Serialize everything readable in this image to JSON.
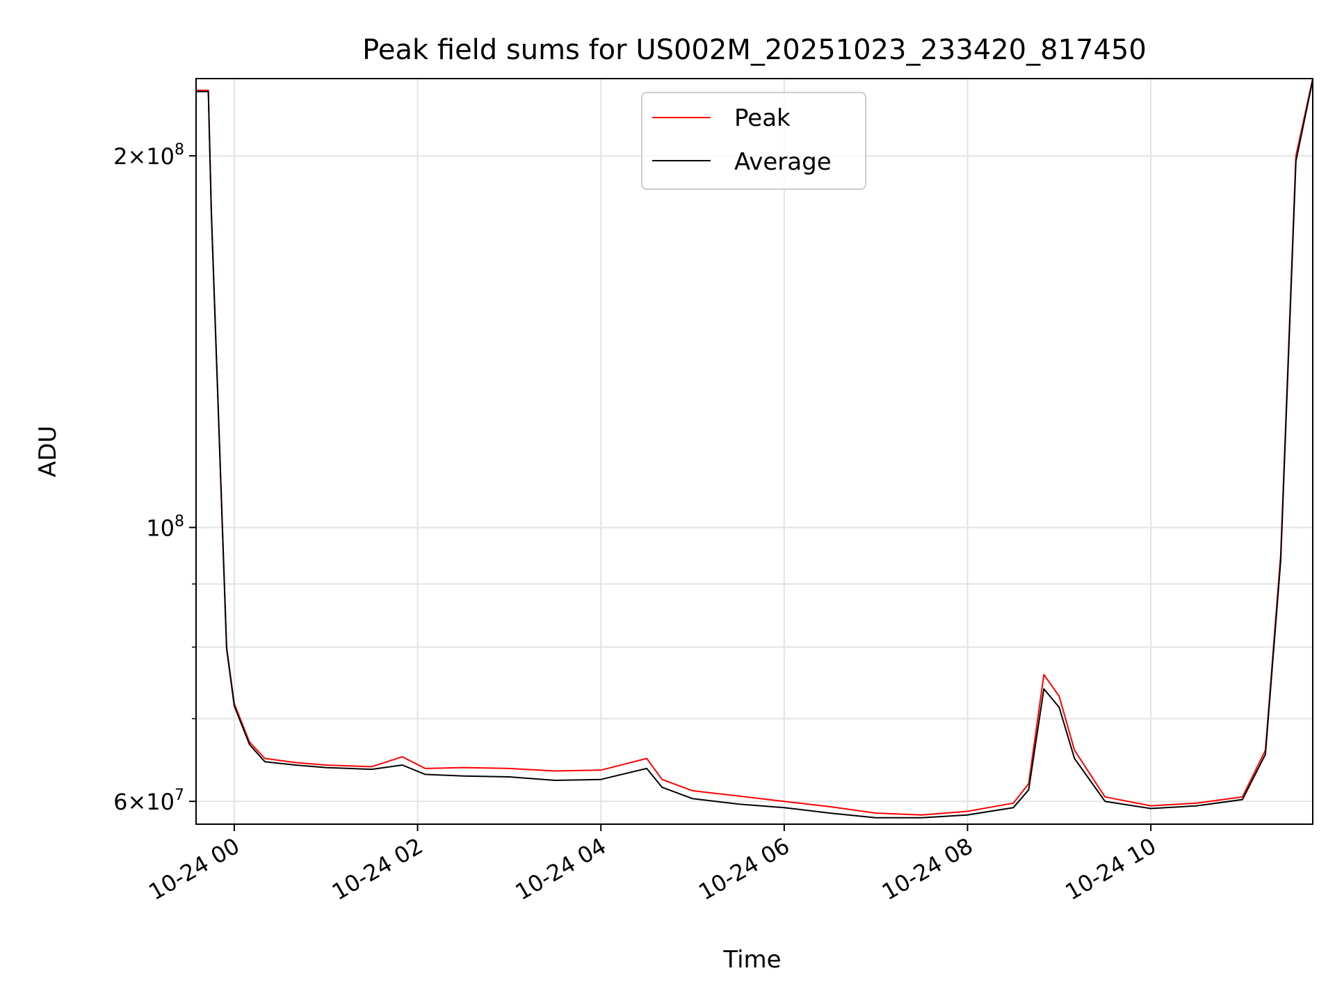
{
  "chart_data": {
    "type": "line",
    "title": "Peak field sums for US002M_20251023_233420_817450",
    "xlabel": "Time",
    "ylabel": "ADU",
    "yscale": "log",
    "ylim": [
      57500000,
      231000000
    ],
    "xlim": [
      "2025-10-23 23:35",
      "2025-10-24 11:46"
    ],
    "grid": true,
    "legend_position": "top-center",
    "x_tick_labels": [
      "10-24 00",
      "10-24 02",
      "10-24 04",
      "10-24 06",
      "10-24 08",
      "10-24 10"
    ],
    "x_ticks": [
      "2025-10-24 00:00",
      "2025-10-24 02:00",
      "2025-10-24 04:00",
      "2025-10-24 06:00",
      "2025-10-24 08:00",
      "2025-10-24 10:00"
    ],
    "y_major_ticks": [
      {
        "value": 60000000,
        "label_base": "6×10",
        "label_exp": "7"
      },
      {
        "value": 100000000,
        "label_base": "10",
        "label_exp": "8"
      },
      {
        "value": 200000000,
        "label_base": "2×10",
        "label_exp": "8"
      }
    ],
    "y_minor_ticks": [
      70000000,
      80000000,
      90000000
    ],
    "series": [
      {
        "name": "Peak",
        "color": "#ff0000",
        "points": [
          [
            "2025-10-23 23:35",
            226000000
          ],
          [
            "2025-10-23 23:43",
            226000000
          ],
          [
            "2025-10-23 23:45",
            180000000
          ],
          [
            "2025-10-23 23:50",
            120000000
          ],
          [
            "2025-10-23 23:55",
            80000000
          ],
          [
            "2025-10-24 00:00",
            72000000
          ],
          [
            "2025-10-24 00:10",
            67000000
          ],
          [
            "2025-10-24 00:20",
            65000000
          ],
          [
            "2025-10-24 00:40",
            64500000
          ],
          [
            "2025-10-24 01:00",
            64200000
          ],
          [
            "2025-10-24 01:30",
            64000000
          ],
          [
            "2025-10-24 01:50",
            65200000
          ],
          [
            "2025-10-24 02:05",
            63800000
          ],
          [
            "2025-10-24 02:30",
            63900000
          ],
          [
            "2025-10-24 03:00",
            63800000
          ],
          [
            "2025-10-24 03:30",
            63500000
          ],
          [
            "2025-10-24 04:00",
            63600000
          ],
          [
            "2025-10-24 04:30",
            65000000
          ],
          [
            "2025-10-24 04:40",
            62500000
          ],
          [
            "2025-10-24 05:00",
            61200000
          ],
          [
            "2025-10-24 05:30",
            60600000
          ],
          [
            "2025-10-24 06:00",
            60000000
          ],
          [
            "2025-10-24 06:30",
            59400000
          ],
          [
            "2025-10-24 07:00",
            58700000
          ],
          [
            "2025-10-24 07:30",
            58500000
          ],
          [
            "2025-10-24 08:00",
            58900000
          ],
          [
            "2025-10-24 08:30",
            59800000
          ],
          [
            "2025-10-24 08:40",
            62000000
          ],
          [
            "2025-10-24 08:50",
            76000000
          ],
          [
            "2025-10-24 09:00",
            73000000
          ],
          [
            "2025-10-24 09:10",
            66000000
          ],
          [
            "2025-10-24 09:30",
            60500000
          ],
          [
            "2025-10-24 10:00",
            59500000
          ],
          [
            "2025-10-24 10:30",
            59800000
          ],
          [
            "2025-10-24 11:00",
            60500000
          ],
          [
            "2025-10-24 11:15",
            66000000
          ],
          [
            "2025-10-24 11:25",
            95000000
          ],
          [
            "2025-10-24 11:35",
            200000000
          ],
          [
            "2025-10-24 11:46",
            231000000
          ]
        ]
      },
      {
        "name": "Average",
        "color": "#000000",
        "points": [
          [
            "2025-10-23 23:35",
            225500000
          ],
          [
            "2025-10-23 23:43",
            225500000
          ],
          [
            "2025-10-23 23:45",
            179500000
          ],
          [
            "2025-10-23 23:50",
            119500000
          ],
          [
            "2025-10-23 23:55",
            79800000
          ],
          [
            "2025-10-24 00:00",
            71700000
          ],
          [
            "2025-10-24 00:10",
            66700000
          ],
          [
            "2025-10-24 00:20",
            64600000
          ],
          [
            "2025-10-24 00:40",
            64200000
          ],
          [
            "2025-10-24 01:00",
            63900000
          ],
          [
            "2025-10-24 01:30",
            63700000
          ],
          [
            "2025-10-24 01:50",
            64200000
          ],
          [
            "2025-10-24 02:05",
            63100000
          ],
          [
            "2025-10-24 02:30",
            62900000
          ],
          [
            "2025-10-24 03:00",
            62800000
          ],
          [
            "2025-10-24 03:30",
            62400000
          ],
          [
            "2025-10-24 04:00",
            62500000
          ],
          [
            "2025-10-24 04:30",
            63800000
          ],
          [
            "2025-10-24 04:40",
            61600000
          ],
          [
            "2025-10-24 05:00",
            60300000
          ],
          [
            "2025-10-24 05:30",
            59700000
          ],
          [
            "2025-10-24 06:00",
            59300000
          ],
          [
            "2025-10-24 06:30",
            58700000
          ],
          [
            "2025-10-24 07:00",
            58200000
          ],
          [
            "2025-10-24 07:30",
            58200000
          ],
          [
            "2025-10-24 08:00",
            58500000
          ],
          [
            "2025-10-24 08:30",
            59300000
          ],
          [
            "2025-10-24 08:40",
            61300000
          ],
          [
            "2025-10-24 08:50",
            74000000
          ],
          [
            "2025-10-24 09:00",
            71500000
          ],
          [
            "2025-10-24 09:10",
            65000000
          ],
          [
            "2025-10-24 09:30",
            60000000
          ],
          [
            "2025-10-24 10:00",
            59200000
          ],
          [
            "2025-10-24 10:30",
            59500000
          ],
          [
            "2025-10-24 11:00",
            60200000
          ],
          [
            "2025-10-24 11:15",
            65500000
          ],
          [
            "2025-10-24 11:25",
            94000000
          ],
          [
            "2025-10-24 11:35",
            198000000
          ],
          [
            "2025-10-24 11:46",
            230500000
          ]
        ]
      }
    ]
  }
}
